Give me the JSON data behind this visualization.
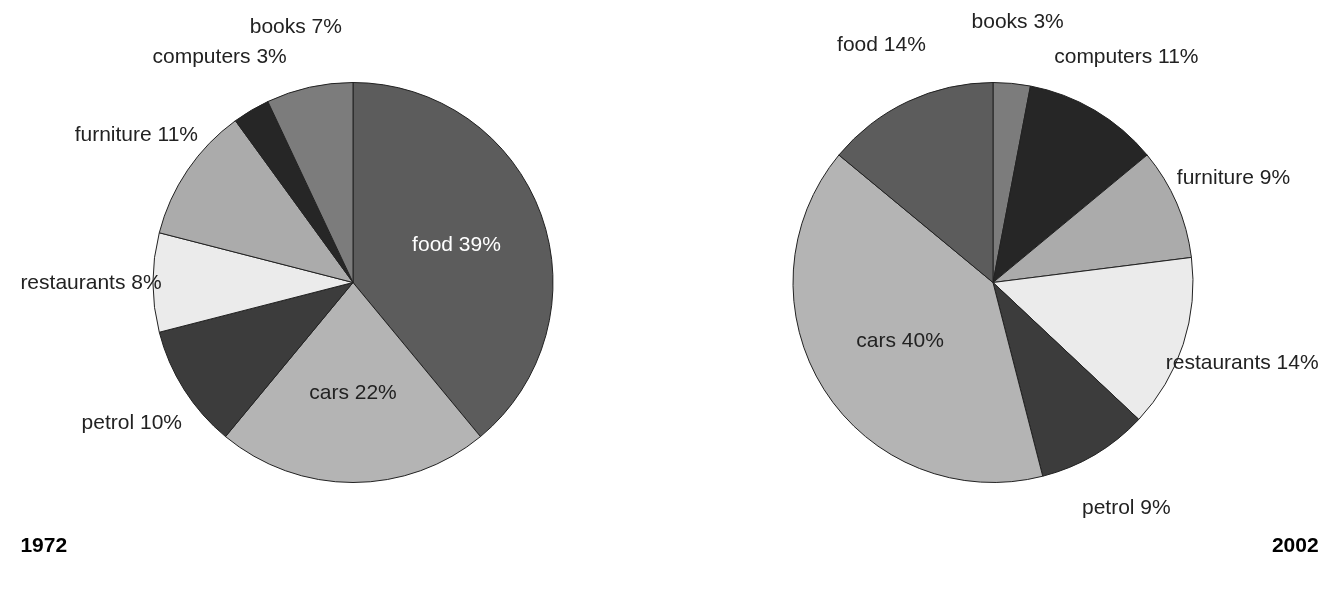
{
  "chart_data": [
    {
      "type": "pie",
      "title": "1972",
      "categories": [
        "food",
        "cars",
        "petrol",
        "restaurants",
        "furniture",
        "computers",
        "books"
      ],
      "values": [
        39,
        22,
        10,
        8,
        11,
        3,
        7
      ],
      "value_labels": [
        "39%",
        "22%",
        "10%",
        "8%",
        "11%",
        "3%",
        "7%"
      ],
      "colors": [
        "#5c5c5c",
        "#b4b4b4",
        "#3c3c3c",
        "#ebebeb",
        "#ababab",
        "#262626",
        "#7c7c7c"
      ]
    },
    {
      "type": "pie",
      "title": "2002",
      "categories": [
        "books",
        "computers",
        "furniture",
        "restaurants",
        "petrol",
        "cars",
        "food"
      ],
      "values": [
        3,
        11,
        9,
        14,
        9,
        40,
        14
      ],
      "value_labels": [
        "3%",
        "11%",
        "9%",
        "14%",
        "9%",
        "40%",
        "14%"
      ],
      "colors": [
        "#7c7c7c",
        "#262626",
        "#ababab",
        "#ebebeb",
        "#3c3c3c",
        "#b4b4b4",
        "#5c5c5c"
      ]
    }
  ]
}
